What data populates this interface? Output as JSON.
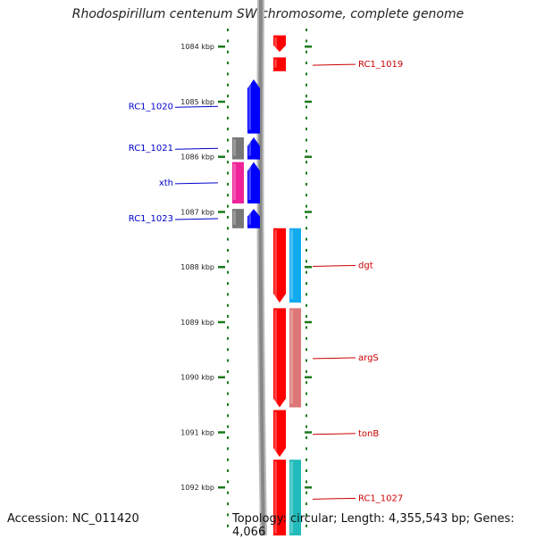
{
  "title": "Rhodospirillum centenum SW chromosome, complete genome",
  "footer": {
    "accession": "Accession: NC_011420",
    "topology": "Topology: circular; Length: 4,355,543 bp; Genes: 4,066"
  },
  "colors": {
    "forward_label": "#cc0000",
    "reverse_label": "#0000cc",
    "tick": "#1a7a1a",
    "backbone": "#888888"
  },
  "kbp_marks": [
    {
      "label": "1084 kbp",
      "kbp": 1084
    },
    {
      "label": "1085 kbp",
      "kbp": 1085
    },
    {
      "label": "1086 kbp",
      "kbp": 1086
    },
    {
      "label": "1087 kbp",
      "kbp": 1087
    },
    {
      "label": "1088 kbp",
      "kbp": 1088
    },
    {
      "label": "1089 kbp",
      "kbp": 1089
    },
    {
      "label": "1090 kbp",
      "kbp": 1090
    },
    {
      "label": "1091 kbp",
      "kbp": 1091
    },
    {
      "label": "1092 kbp",
      "kbp": 1092
    }
  ],
  "genes": [
    {
      "name": "",
      "strand": "+",
      "start": 1083.8,
      "end": 1084.1,
      "color": "#ff0000",
      "lane": "cds",
      "arrow": true
    },
    {
      "name": "RC1_1019",
      "strand": "+",
      "start": 1084.2,
      "end": 1084.45,
      "color": "#ff0000",
      "lane": "cds",
      "arrow": false
    },
    {
      "name": "RC1_1020",
      "strand": "-",
      "start": 1084.6,
      "end": 1085.58,
      "color": "#0000ff",
      "lane": "cds",
      "arrow": true
    },
    {
      "name": "RC1_1021",
      "strand": "-",
      "start": 1085.65,
      "end": 1086.05,
      "color": "#0000ff",
      "lane": "cds",
      "arrow": true
    },
    {
      "name": "",
      "strand": "-",
      "start": 1085.65,
      "end": 1086.05,
      "color": "#777777",
      "lane": "feat",
      "arrow": false
    },
    {
      "name": "xth",
      "strand": "-",
      "start": 1086.1,
      "end": 1086.85,
      "color": "#0000ff",
      "lane": "cds",
      "arrow": true
    },
    {
      "name": "",
      "strand": "-",
      "start": 1086.1,
      "end": 1086.85,
      "color": "#ee2299",
      "lane": "feat",
      "arrow": false
    },
    {
      "name": "RC1_1023",
      "strand": "-",
      "start": 1086.95,
      "end": 1087.3,
      "color": "#0000ff",
      "lane": "cds",
      "arrow": true
    },
    {
      "name": "",
      "strand": "-",
      "start": 1086.95,
      "end": 1087.3,
      "color": "#777777",
      "lane": "feat",
      "arrow": false
    },
    {
      "name": "dgt",
      "strand": "+",
      "start": 1087.3,
      "end": 1088.65,
      "color": "#ff0000",
      "lane": "cds",
      "arrow": true
    },
    {
      "name": "",
      "strand": "+",
      "start": 1087.3,
      "end": 1088.65,
      "color": "#11aaee",
      "lane": "feat",
      "arrow": false
    },
    {
      "name": "argS",
      "strand": "+",
      "start": 1088.75,
      "end": 1090.55,
      "color": "#ff0000",
      "lane": "cds",
      "arrow": true
    },
    {
      "name": "",
      "strand": "+",
      "start": 1088.75,
      "end": 1090.55,
      "color": "#dd7777",
      "lane": "feat",
      "arrow": false
    },
    {
      "name": "tonB",
      "strand": "+",
      "start": 1090.6,
      "end": 1091.45,
      "color": "#ff0000",
      "lane": "cds",
      "arrow": true
    },
    {
      "name": "RC1_1027",
      "strand": "+",
      "start": 1091.5,
      "end": 1092.9,
      "color": "#ff0000",
      "lane": "cds",
      "arrow": false
    },
    {
      "name": "",
      "strand": "+",
      "start": 1091.5,
      "end": 1092.9,
      "color": "#22bbbb",
      "lane": "feat",
      "arrow": false
    }
  ]
}
